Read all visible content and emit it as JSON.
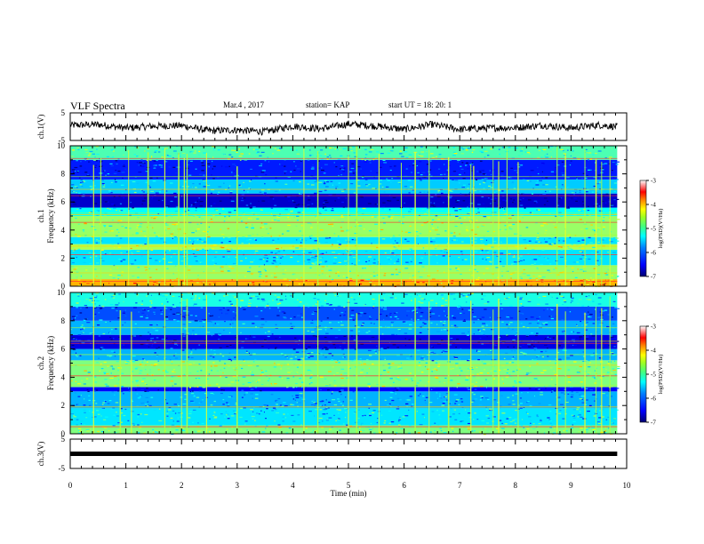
{
  "header": {
    "title": "VLF Spectra",
    "date": "Mar.4 , 2017",
    "station": "station= KAP",
    "start": "start UT = 18: 20: 1"
  },
  "colors": {
    "waveform": "#000000",
    "frame": "#000000",
    "colormap": [
      "#00007f",
      "#0000ff",
      "#0080ff",
      "#00ffff",
      "#7fff7f",
      "#ffff00",
      "#ff8000",
      "#ff0000",
      "#ffffff"
    ]
  },
  "chart_data": [
    {
      "type": "line",
      "panel": "ch1-waveform",
      "ylabel": "ch.1(V)",
      "ylim": [
        -5,
        5
      ],
      "yticks": [
        "5",
        "-5"
      ],
      "xlim": [
        0,
        10
      ],
      "trace_description_values": {
        "x": [
          0,
          0.5,
          1,
          1.5,
          2,
          2.5,
          3,
          3.5,
          4,
          4.5,
          5,
          5.5,
          6,
          6.5,
          7,
          7.5,
          8,
          8.5,
          9,
          9.5,
          9.83
        ],
        "y": [
          0.5,
          0.8,
          -0.5,
          0.2,
          0.4,
          -1.5,
          -1.2,
          -1.8,
          0.2,
          -0.8,
          1.0,
          0.2,
          -1.0,
          0.8,
          -1.0,
          -0.5,
          -0.4,
          0.5,
          -0.5,
          0.6,
          0.0
        ]
      }
    },
    {
      "type": "heatmap",
      "panel": "ch1-spectrogram",
      "ylabel": "Frequency (kHz)",
      "channel_label": "ch.1",
      "ylim": [
        0,
        10
      ],
      "yticks": [
        "0",
        "2",
        "4",
        "6",
        "8",
        "10"
      ],
      "xlim": [
        0,
        10
      ],
      "data_extent_x": 9.83,
      "colorbar": {
        "label": "log(PSD)(V²/Hz)",
        "range": [
          -7,
          -3
        ],
        "ticks": [
          "-3",
          "-4",
          "-5",
          "-6",
          "-7"
        ]
      },
      "bands_log_psd": [
        {
          "f": [
            0,
            0.5
          ],
          "v": -4.2
        },
        {
          "f": [
            0.5,
            1.5
          ],
          "v": -4.9
        },
        {
          "f": [
            1.5,
            2.6
          ],
          "v": -5.6
        },
        {
          "f": [
            2.6,
            3.0
          ],
          "v": -4.8
        },
        {
          "f": [
            3.0,
            3.5
          ],
          "v": -5.6
        },
        {
          "f": [
            3.5,
            5.0
          ],
          "v": -4.9
        },
        {
          "f": [
            5.0,
            5.6
          ],
          "v": -5.5
        },
        {
          "f": [
            5.6,
            6.6
          ],
          "v": -6.7
        },
        {
          "f": [
            6.6,
            7.6
          ],
          "v": -5.7
        },
        {
          "f": [
            7.6,
            9.0
          ],
          "v": -6.4
        },
        {
          "f": [
            9.0,
            10.0
          ],
          "v": -5.2
        }
      ],
      "narrowband_lines_khz": [
        0.35,
        0.95,
        1.45,
        2.25,
        2.85,
        3.65,
        4.55,
        5.1,
        5.2,
        6.45,
        6.9,
        7.8,
        9.1
      ],
      "impulsive_events_min": [
        0.42,
        0.55,
        1.05,
        1.4,
        1.7,
        1.95,
        2.05,
        2.1,
        2.45,
        3.0,
        4.2,
        4.45,
        5.0,
        5.15,
        5.55,
        5.95,
        6.2,
        6.45,
        6.8,
        7.2,
        7.25,
        7.6,
        7.7,
        7.85,
        8.05,
        8.75,
        8.9,
        9.25,
        9.45,
        9.55,
        9.7
      ]
    },
    {
      "type": "heatmap",
      "panel": "ch2-spectrogram",
      "ylabel": "Frequency (kHz)",
      "channel_label": "ch.2",
      "ylim": [
        0,
        10
      ],
      "yticks": [
        "0",
        "2",
        "4",
        "6",
        "8",
        "10"
      ],
      "xlim": [
        0,
        10
      ],
      "data_extent_x": 9.83,
      "colorbar": {
        "label": "log(PSD)(V²/Hz)",
        "range": [
          -7,
          -3
        ],
        "ticks": [
          "-3",
          "-4",
          "-5",
          "-6",
          "-7"
        ]
      },
      "bands_log_psd": [
        {
          "f": [
            0,
            0.6
          ],
          "v": -5.0
        },
        {
          "f": [
            0.6,
            1.8
          ],
          "v": -5.6
        },
        {
          "f": [
            1.8,
            3.0
          ],
          "v": -5.8
        },
        {
          "f": [
            3.0,
            3.3
          ],
          "v": -6.5
        },
        {
          "f": [
            3.3,
            5.2
          ],
          "v": -5.0
        },
        {
          "f": [
            5.2,
            6.0
          ],
          "v": -5.8
        },
        {
          "f": [
            6.0,
            7.0
          ],
          "v": -6.6
        },
        {
          "f": [
            7.0,
            8.0
          ],
          "v": -5.8
        },
        {
          "f": [
            8.0,
            9.0
          ],
          "v": -6.2
        },
        {
          "f": [
            9.0,
            10.0
          ],
          "v": -5.4
        }
      ],
      "narrowband_lines_khz": [
        0.5,
        1.9,
        3.45,
        4.1,
        4.85,
        5.6,
        6.4,
        6.55,
        7.5
      ],
      "impulsive_events_min": [
        0.42,
        0.9,
        1.1,
        1.7,
        2.0,
        2.1,
        2.45,
        3.0,
        4.2,
        4.45,
        5.0,
        5.15,
        5.55,
        6.2,
        6.45,
        6.8,
        7.2,
        7.6,
        7.7,
        8.05,
        8.75,
        8.9,
        9.25,
        9.45,
        9.55,
        9.7
      ]
    },
    {
      "type": "line",
      "panel": "ch3-waveform",
      "ylabel": "ch.3(V)",
      "ylim": [
        -5,
        5
      ],
      "yticks": [
        "5",
        "-5"
      ],
      "xlim": [
        0,
        10
      ],
      "y_constant": 0,
      "xlabel": "Time (min)",
      "xticks": [
        "0",
        "1",
        "2",
        "3",
        "4",
        "5",
        "6",
        "7",
        "8",
        "9",
        "10"
      ]
    }
  ]
}
